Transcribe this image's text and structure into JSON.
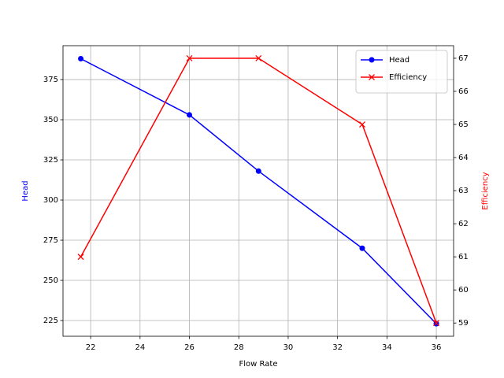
{
  "chart_data": {
    "type": "line",
    "xlabel": "Flow Rate",
    "ylabel": "Head",
    "y2label": "Efficiency",
    "x": [
      21.6,
      26,
      28.8,
      33,
      36
    ],
    "series": [
      {
        "name": "Head",
        "color": "#0000ff",
        "marker": "circle",
        "values": [
          388,
          353,
          318,
          270,
          223
        ]
      },
      {
        "name": "Efficiency",
        "color": "#ff0000",
        "marker": "x",
        "axis": "y2",
        "values": [
          61,
          67,
          67,
          65,
          59
        ]
      }
    ],
    "xlim": [
      20.88,
      36.7
    ],
    "xticks": [
      22,
      24,
      26,
      28,
      30,
      32,
      34,
      36
    ],
    "ylim": [
      215.2,
      396.1
    ],
    "yticks": [
      225,
      250,
      275,
      300,
      325,
      350,
      375
    ],
    "y2lim": [
      58.6,
      67.38
    ],
    "y2ticks": [
      59,
      60,
      61,
      62,
      63,
      64,
      65,
      66,
      67
    ],
    "grid": true,
    "legend": "upper right"
  }
}
